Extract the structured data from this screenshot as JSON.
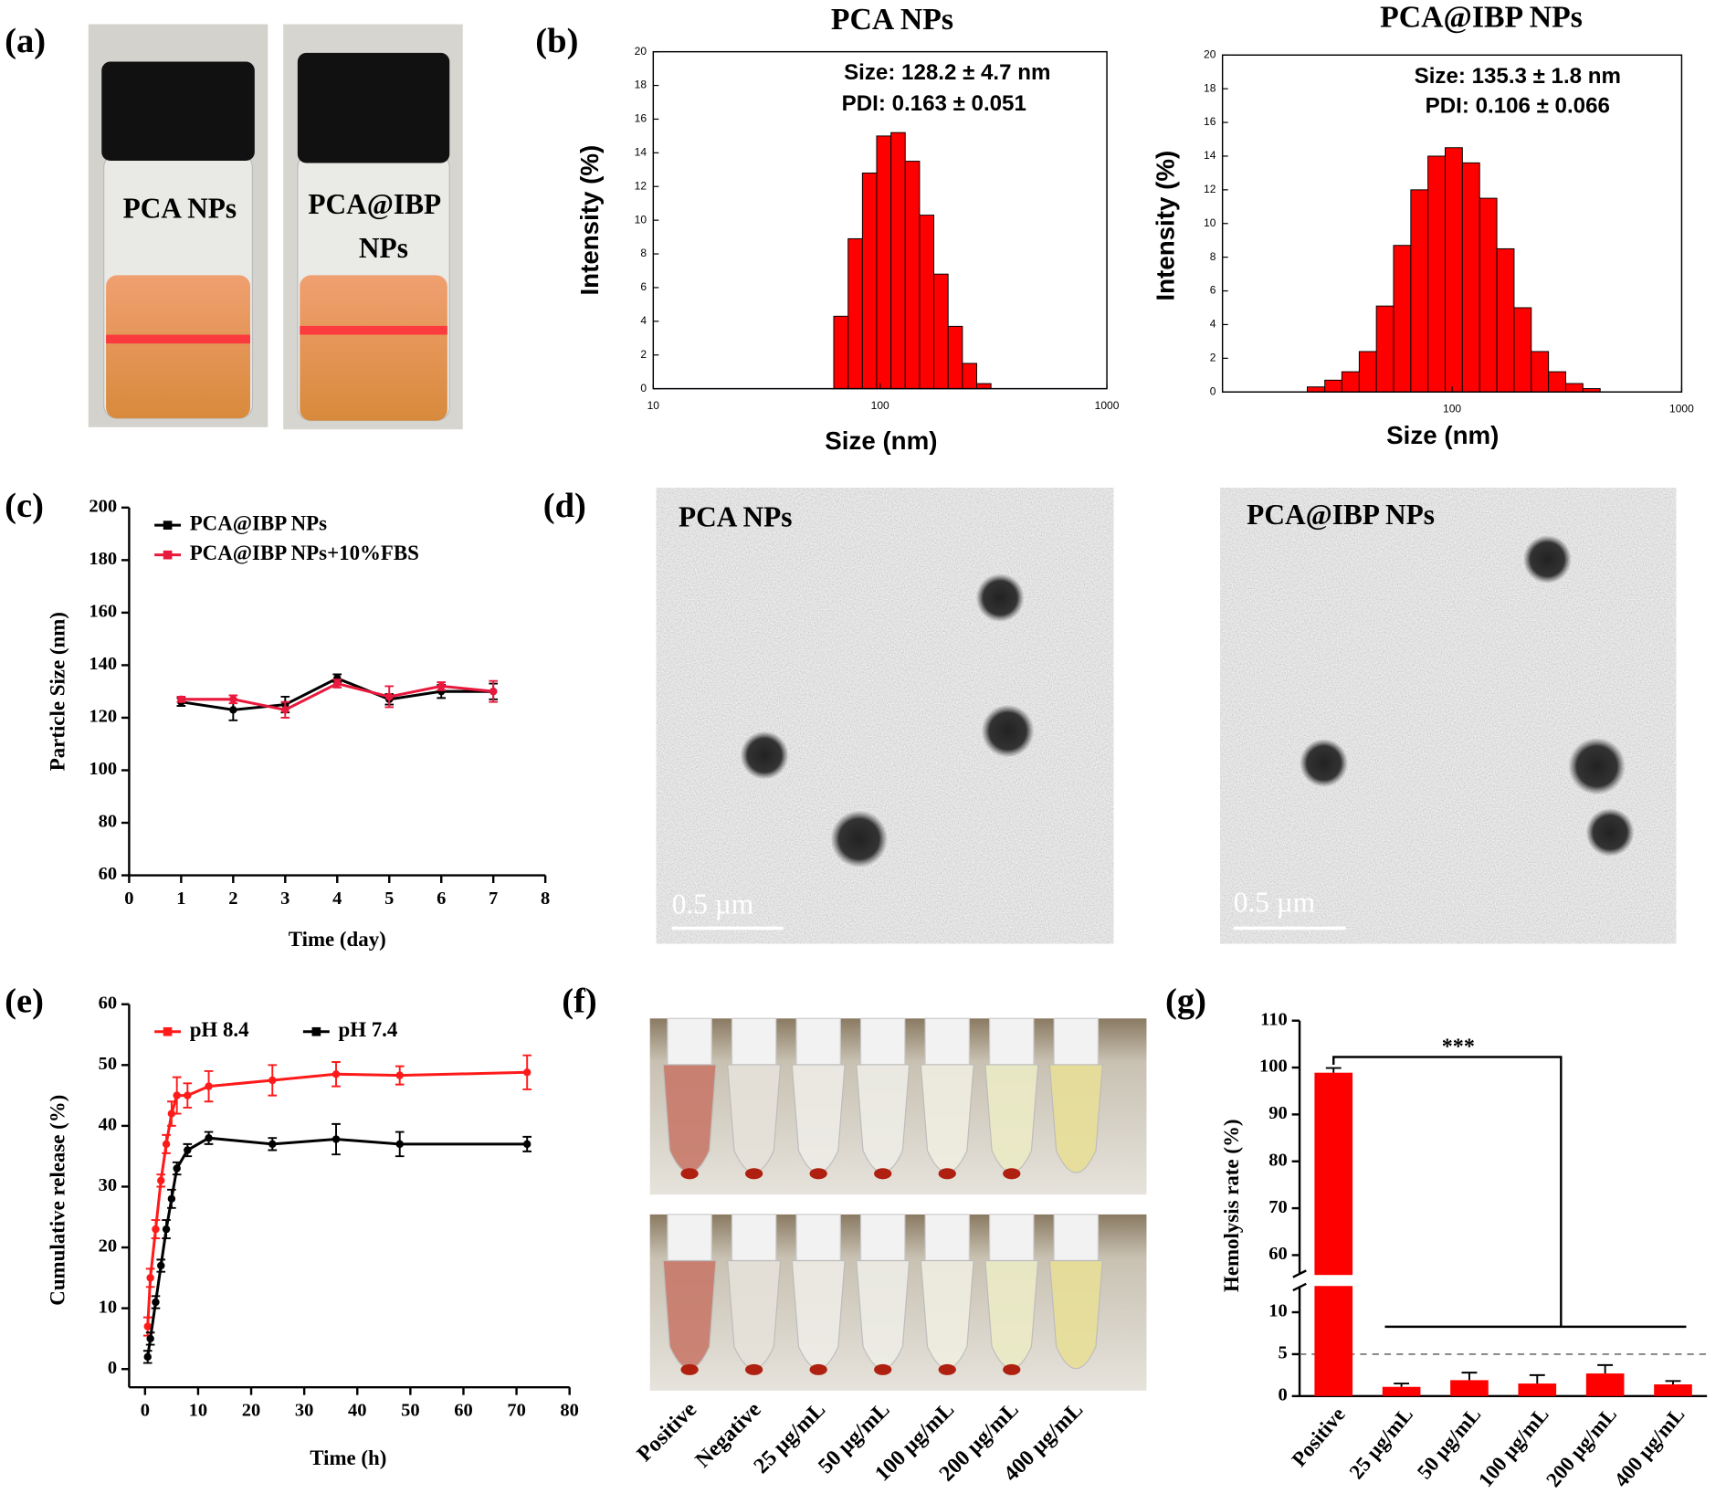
{
  "panels": [
    "(a)",
    "(b)",
    "(c)",
    "(d)",
    "(e)",
    "(f)",
    "(g)"
  ],
  "photos": {
    "a": [
      "PCA NPs",
      [
        "PCA@IBP",
        "NPs"
      ]
    ],
    "d": [
      {
        "title": "PCA NPs",
        "scale": "0.5 µm"
      },
      {
        "title": "PCA@IBP NPs",
        "scale": "0.5 µm"
      }
    ],
    "f": [
      "Positive",
      "Negative",
      "25 µg/mL",
      "50 µg/mL",
      "100 µg/mL",
      "200 µg/mL",
      "400 µg/mL"
    ]
  },
  "chart_data": [
    {
      "type": "histogram",
      "title": "PCA NPs",
      "annotations": [
        "Size: 128.2 ± 4.7 nm",
        "PDI: 0.163 ± 0.051"
      ],
      "xlabel": "Size (nm)",
      "ylabel": "Intensity (%)",
      "xscale": "log",
      "color": "#ff0000",
      "bins": [
        62.5,
        72.3,
        83.6,
        96.6,
        111.7,
        129.1,
        149.3,
        172.6,
        199.5,
        230.7,
        266.7,
        308.3
      ],
      "values": [
        4.3,
        8.9,
        12.8,
        15.0,
        15.2,
        13.5,
        10.3,
        6.8,
        3.7,
        1.5,
        0.3
      ],
      "xlim": [
        10,
        1000
      ],
      "xticks": [
        10,
        100,
        1000
      ],
      "ylim": [
        0,
        20
      ],
      "yticks": [
        0,
        2,
        4,
        6,
        8,
        10,
        12,
        14,
        16,
        18,
        20
      ]
    },
    {
      "type": "histogram",
      "title": "PCA@IBP NPs",
      "annotations": [
        "Size: 135.3 ± 1.8 nm",
        "PDI: 0.106 ± 0.066"
      ],
      "xlabel": "Size (nm)",
      "ylabel": "Intensity (%)",
      "xscale": "log",
      "color": "#ff0000",
      "bins": [
        23.4,
        27.9,
        33.1,
        39.4,
        46.8,
        55.6,
        66.1,
        78.5,
        93.3,
        110.9,
        131.8,
        156.7,
        186.2,
        221.3,
        263.0,
        312.6,
        371.5,
        441.6
      ],
      "values": [
        0.3,
        0.7,
        1.2,
        2.4,
        5.1,
        8.7,
        12.0,
        14.0,
        14.5,
        13.6,
        11.5,
        8.5,
        5.0,
        2.4,
        1.2,
        0.5,
        0.2
      ],
      "xlim": [
        10,
        1000
      ],
      "xticks": [
        100,
        1000
      ],
      "ylim": [
        0,
        20
      ],
      "yticks": [
        0,
        2,
        4,
        6,
        8,
        10,
        12,
        14,
        16,
        18,
        20
      ]
    },
    {
      "type": "line",
      "xlabel": "Time (day)",
      "ylabel": "Particle Size (nm)",
      "legend": "upper left",
      "x": [
        1,
        2,
        3,
        4,
        5,
        6,
        7
      ],
      "series": [
        {
          "name": "PCA@IBP NPs",
          "color": "#000000",
          "values": [
            126,
            123,
            125,
            135,
            127,
            130,
            130
          ],
          "errors": [
            1.5,
            4,
            3,
            1.5,
            2,
            2.5,
            3
          ]
        },
        {
          "name": "PCA@IBP NPs+10%FBS",
          "color": "#e8193c",
          "values": [
            127,
            127,
            123,
            133,
            128,
            132,
            130
          ],
          "errors": [
            1,
            1.5,
            3,
            1.5,
            4,
            1.5,
            4
          ]
        }
      ],
      "xlim": [
        0,
        8
      ],
      "xticks": [
        0,
        1,
        2,
        3,
        4,
        5,
        6,
        7,
        8
      ],
      "ylim": [
        60,
        200
      ],
      "yticks": [
        60,
        80,
        100,
        120,
        140,
        160,
        180,
        200
      ]
    },
    {
      "type": "line",
      "xlabel": "Time (h)",
      "ylabel": "Cumulative release (%)",
      "legend": "upper left",
      "x": [
        0.5,
        1,
        2,
        3,
        4,
        5,
        6,
        8,
        12,
        24,
        36,
        48,
        72
      ],
      "series": [
        {
          "name": "pH 8.4",
          "color": "#ff1a1a",
          "values": [
            7,
            15,
            23,
            31,
            37,
            42,
            45,
            45,
            46.5,
            47.5,
            48.5,
            48.3,
            48.8
          ],
          "errors": [
            1.5,
            1.5,
            1.5,
            1,
            1.5,
            2,
            3,
            2,
            2.5,
            2.5,
            2,
            1.5,
            2.8
          ]
        },
        {
          "name": "pH 7.4",
          "color": "#000000",
          "values": [
            2,
            5,
            11,
            17,
            23,
            28,
            33,
            36,
            38,
            37,
            37.8,
            37,
            37
          ],
          "errors": [
            1,
            1,
            1,
            1,
            1.5,
            1.5,
            1,
            1,
            1,
            1,
            2.5,
            2,
            1.2
          ]
        }
      ],
      "xlim": [
        -3,
        80
      ],
      "xticks": [
        0,
        10,
        20,
        30,
        40,
        50,
        60,
        70,
        80
      ],
      "ylim": [
        -3,
        60
      ],
      "yticks": [
        0,
        10,
        20,
        30,
        40,
        50,
        60
      ]
    },
    {
      "type": "bar",
      "ylabel": "Hemolysis rate (%)",
      "annotation": "***",
      "color": "#ff0000",
      "categories": [
        "Positive",
        "25 µg/mL",
        "50 µg/mL",
        "100 µg/mL",
        "200 µg/mL",
        "400 µg/mL"
      ],
      "values": [
        98.9,
        1.1,
        1.9,
        1.5,
        2.7,
        1.4
      ],
      "errors": [
        1.0,
        0.4,
        0.9,
        1.0,
        1.0,
        0.4
      ],
      "ylim": [
        0,
        110
      ],
      "axis_break": [
        13,
        56
      ],
      "reference_line": 5,
      "yticks": [
        0,
        5,
        10,
        60,
        70,
        80,
        90,
        100,
        110
      ]
    }
  ]
}
